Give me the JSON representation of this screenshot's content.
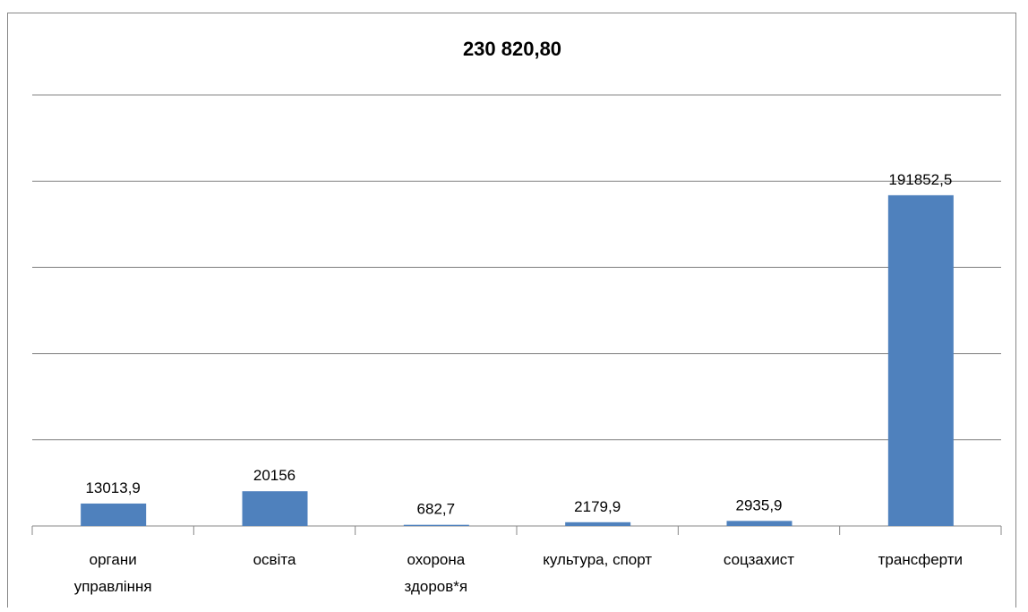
{
  "chart_data": {
    "type": "bar",
    "title": "230 820,80",
    "categories": [
      "органи\nуправління",
      "освіта",
      "охорона\nздоров*я",
      "культура, спорт",
      "соцзахист",
      "трансферти"
    ],
    "values": [
      13013.9,
      20156,
      682.7,
      2179.9,
      2935.9,
      191852.5
    ],
    "value_labels": [
      "13013,9",
      "20156",
      "682,7",
      "2179,9",
      "2935,9",
      "191852,5"
    ],
    "color": "#4f81bd",
    "ylim": [
      0,
      250000
    ],
    "yticks": [
      0,
      50000,
      100000,
      150000,
      200000,
      250000
    ],
    "grid": true
  }
}
